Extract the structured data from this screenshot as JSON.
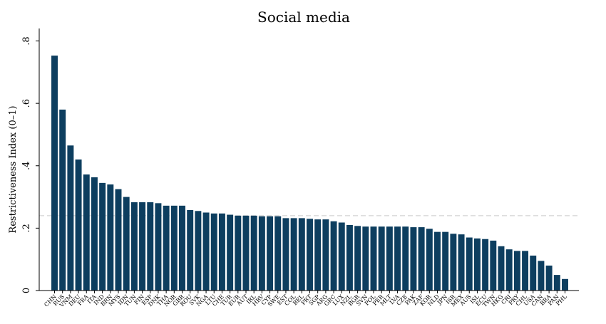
{
  "chart_data": {
    "type": "bar",
    "title": "Social media",
    "xlabel": "",
    "ylabel": "Restrictiveness Index (0–1)",
    "ylim": [
      0,
      0.84
    ],
    "yticks": [
      0,
      0.2,
      0.4,
      0.6,
      0.8
    ],
    "ytick_labels": [
      "0",
      ".2",
      ".4",
      ".6",
      ".8"
    ],
    "reference_line": 0.24,
    "grid": false,
    "bar_color": "#0d3e5f",
    "reference_line_color": "#c9c9c9",
    "categories": [
      "CHN",
      "RUS",
      "VNM",
      "DEU",
      "FRA",
      "ITA",
      "IND",
      "BRN",
      "MYS",
      "IDN",
      "TUN",
      "FIN",
      "ESP",
      "DNK",
      "THA",
      "NOR",
      "GBR",
      "ROU",
      "SVK",
      "NGA",
      "LTU",
      "CHE",
      "TUR",
      "EUR",
      "AUT",
      "IRL",
      "HRV",
      "CYP",
      "SWE",
      "EST",
      "COL",
      "BEL",
      "PRT",
      "SGP",
      "ARG",
      "GRC",
      "LUX",
      "NZL",
      "BGR",
      "SVN",
      "POL",
      "PER",
      "MLT",
      "LVA",
      "CZE",
      "PAK",
      "ZAF",
      "KOR",
      "NLD",
      "JPN",
      "ISR",
      "MEX",
      "AUS",
      "ISL",
      "ECU",
      "TWN",
      "HKG",
      "CRI",
      "PRY",
      "CHL",
      "USA",
      "CAN",
      "BRA",
      "PAN",
      "PHL"
    ],
    "values": [
      0.753,
      0.58,
      0.465,
      0.42,
      0.372,
      0.363,
      0.345,
      0.34,
      0.325,
      0.3,
      0.283,
      0.283,
      0.283,
      0.28,
      0.272,
      0.272,
      0.272,
      0.258,
      0.255,
      0.25,
      0.247,
      0.247,
      0.243,
      0.24,
      0.24,
      0.24,
      0.238,
      0.238,
      0.238,
      0.232,
      0.232,
      0.232,
      0.23,
      0.228,
      0.228,
      0.222,
      0.218,
      0.21,
      0.207,
      0.205,
      0.205,
      0.205,
      0.205,
      0.205,
      0.205,
      0.203,
      0.203,
      0.198,
      0.188,
      0.188,
      0.182,
      0.18,
      0.17,
      0.167,
      0.165,
      0.16,
      0.142,
      0.132,
      0.127,
      0.127,
      0.112,
      0.095,
      0.08,
      0.05,
      0.037
    ]
  }
}
